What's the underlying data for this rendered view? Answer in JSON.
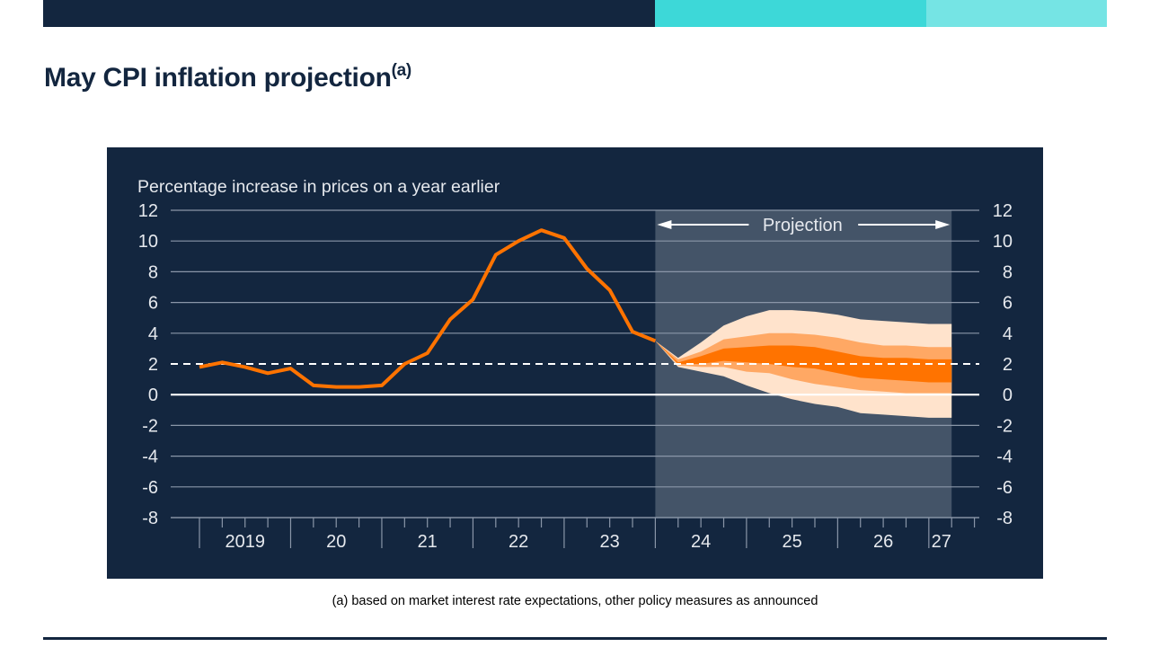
{
  "header": {
    "title": "May CPI inflation projection",
    "title_superscript": "(a)",
    "bar_colors": {
      "dark": "#13263f",
      "teal": "#3dd8d8",
      "light_teal": "#75e4e4"
    }
  },
  "chart_data": {
    "type": "line",
    "title": "",
    "ylabel": "Percentage increase in prices on a year earlier",
    "xlabel": "",
    "ylim": [
      -8,
      12
    ],
    "yticks": [
      "12",
      "10",
      "8",
      "6",
      "4",
      "2",
      "0",
      "-2",
      "-4",
      "-6",
      "-8"
    ],
    "ytick_values": [
      12,
      10,
      8,
      6,
      4,
      2,
      0,
      -2,
      -4,
      -6,
      -8
    ],
    "x_year_labels": [
      "2019",
      "20",
      "21",
      "22",
      "23",
      "24",
      "25",
      "26",
      "27"
    ],
    "x_start": "2019 Q1",
    "x_end": "2027 Q2",
    "x_unit": "quarter",
    "grid": true,
    "target_line": {
      "value": 2,
      "style": "dashed",
      "color": "#ffffff"
    },
    "zero_line": {
      "value": 0,
      "color": "#ffffff"
    },
    "projection_region": {
      "label": "Projection",
      "from": "2024 Q1",
      "to": "2027 Q2",
      "color": "#445468"
    },
    "series": [
      {
        "name": "CPI inflation (outturn)",
        "color": "#ff7300",
        "x": [
          "2019 Q1",
          "2019 Q2",
          "2019 Q3",
          "2019 Q4",
          "2020 Q1",
          "2020 Q2",
          "2020 Q3",
          "2020 Q4",
          "2021 Q1",
          "2021 Q2",
          "2021 Q3",
          "2021 Q4",
          "2022 Q1",
          "2022 Q2",
          "2022 Q3",
          "2022 Q4",
          "2023 Q1",
          "2023 Q2",
          "2023 Q3",
          "2023 Q4",
          "2024 Q1"
        ],
        "values": [
          1.8,
          2.1,
          1.8,
          1.4,
          1.7,
          0.6,
          0.5,
          0.5,
          0.6,
          2.0,
          2.7,
          4.9,
          6.2,
          9.1,
          10.0,
          10.7,
          10.2,
          8.2,
          6.8,
          4.1,
          3.5
        ]
      }
    ],
    "fan": {
      "x": [
        "2024 Q1",
        "2024 Q2",
        "2024 Q3",
        "2024 Q4",
        "2025 Q1",
        "2025 Q2",
        "2025 Q3",
        "2025 Q4",
        "2026 Q1",
        "2026 Q2",
        "2026 Q3",
        "2026 Q4",
        "2027 Q1",
        "2027 Q2"
      ],
      "bands": [
        {
          "name": "outer band",
          "color": "#ffe3cc",
          "upper": [
            3.5,
            2.4,
            3.4,
            4.5,
            5.1,
            5.5,
            5.5,
            5.4,
            5.2,
            4.9,
            4.8,
            4.7,
            4.6,
            4.6
          ],
          "lower": [
            3.5,
            1.8,
            1.5,
            1.2,
            0.6,
            0.1,
            -0.3,
            -0.6,
            -0.8,
            -1.2,
            -1.3,
            -1.4,
            -1.5,
            -1.5
          ]
        },
        {
          "name": "middle band",
          "color": "#ffa864",
          "upper": [
            3.5,
            2.3,
            2.8,
            3.6,
            3.8,
            4.0,
            4.0,
            3.9,
            3.7,
            3.4,
            3.2,
            3.2,
            3.1,
            3.1
          ],
          "lower": [
            3.5,
            1.9,
            1.8,
            1.8,
            1.5,
            1.4,
            1.0,
            0.7,
            0.5,
            0.3,
            0.2,
            0.1,
            0.1,
            0.1
          ]
        },
        {
          "name": "central band",
          "color": "#ff7300",
          "upper": [
            3.5,
            2.1,
            2.5,
            3.0,
            3.1,
            3.2,
            3.2,
            3.1,
            2.8,
            2.5,
            2.4,
            2.4,
            2.3,
            2.3
          ],
          "lower": [
            3.5,
            2.0,
            2.0,
            2.2,
            2.1,
            2.0,
            1.8,
            1.7,
            1.4,
            1.1,
            1.0,
            0.9,
            0.8,
            0.8
          ]
        }
      ]
    }
  },
  "footnote": "(a) based on market interest rate expectations, other policy measures as announced"
}
